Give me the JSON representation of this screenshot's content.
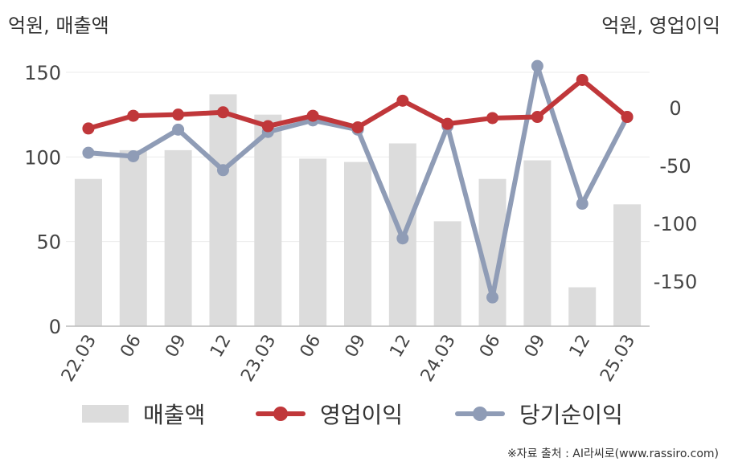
{
  "chart_data": {
    "type": "bar",
    "left_axis_unit": "억원, 매출액",
    "right_axis_unit": "억원, 영업이익",
    "categories": [
      "22.03",
      "06",
      "09",
      "12",
      "23.03",
      "06",
      "09",
      "12",
      "24.03",
      "06",
      "09",
      "12",
      "25.03"
    ],
    "left_ylim": [
      0,
      160
    ],
    "left_ticks": [
      "0",
      "50",
      "100",
      "150"
    ],
    "right_ylim": [
      -190,
      40
    ],
    "right_ticks": [
      "0",
      "-50",
      "-100",
      "-150"
    ],
    "grid": true,
    "legend_position": "bottom",
    "series": [
      {
        "name": "매출액",
        "type": "bar",
        "axis": "left",
        "color": "#dcdcdc",
        "values": [
          87,
          104,
          104,
          137,
          125,
          99,
          97,
          108,
          62,
          87,
          98,
          23,
          72
        ]
      },
      {
        "name": "영업이익",
        "type": "line",
        "axis": "right",
        "color": "#c0373a",
        "values": [
          -18,
          -7,
          -6,
          -4,
          -16,
          -7,
          -17,
          6,
          -14,
          -9,
          -8,
          24,
          -8
        ]
      },
      {
        "name": "당기순이익",
        "type": "line",
        "axis": "right",
        "color": "#8f9cb6",
        "values": [
          -39,
          -42,
          -19,
          -54,
          -21,
          -11,
          -19,
          -113,
          -16,
          -164,
          36,
          -83,
          -8
        ]
      }
    ]
  },
  "source_note": "※자료 출처 : AI라씨로(www.rassiro.com)"
}
